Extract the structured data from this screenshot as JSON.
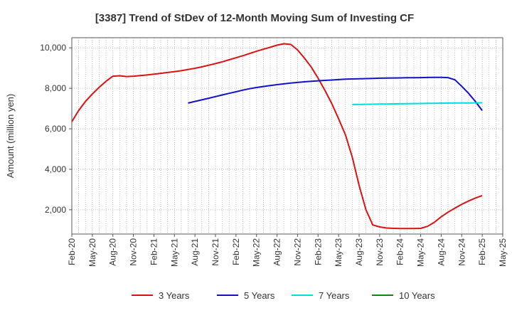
{
  "chart_data": {
    "type": "line",
    "title": "[3387]  Trend of StDev of 12-Month Moving Sum of Investing CF",
    "xlabel": "",
    "ylabel": "Amount (million yen)",
    "ylim": [
      800,
      10500
    ],
    "yticks": [
      2000,
      4000,
      6000,
      8000,
      10000
    ],
    "ytick_labels": [
      "2,000",
      "4,000",
      "6,000",
      "8,000",
      "10,000"
    ],
    "x_start": "Feb-20",
    "x_end": "May-25",
    "xticks": [
      "Feb-20",
      "May-20",
      "Aug-20",
      "Nov-20",
      "Feb-21",
      "May-21",
      "Aug-21",
      "Nov-21",
      "Feb-22",
      "May-22",
      "Aug-22",
      "Nov-22",
      "Feb-23",
      "May-23",
      "Aug-23",
      "Nov-23",
      "Feb-24",
      "May-24",
      "Aug-24",
      "Nov-24",
      "Feb-25",
      "May-25"
    ],
    "grid": true,
    "legend_position": "bottom",
    "series": [
      {
        "name": "3 Years",
        "color": "#dd1111",
        "x": [
          "Feb-20",
          "Mar-20",
          "Apr-20",
          "May-20",
          "Jun-20",
          "Jul-20",
          "Aug-20",
          "Sep-20",
          "Oct-20",
          "Nov-20",
          "Dec-20",
          "Jan-21",
          "Feb-21",
          "Mar-21",
          "Apr-21",
          "May-21",
          "Jun-21",
          "Jul-21",
          "Aug-21",
          "Sep-21",
          "Oct-21",
          "Nov-21",
          "Dec-21",
          "Jan-22",
          "Feb-22",
          "Mar-22",
          "Apr-22",
          "May-22",
          "Jun-22",
          "Jul-22",
          "Aug-22",
          "Sep-22",
          "Oct-22",
          "Nov-22",
          "Dec-22",
          "Jan-23",
          "Feb-23",
          "Mar-23",
          "Apr-23",
          "May-23",
          "Jun-23",
          "Jul-23",
          "Aug-23",
          "Sep-23",
          "Oct-23",
          "Nov-23",
          "Dec-23",
          "Jan-24",
          "Feb-24",
          "Mar-24",
          "Apr-24",
          "May-24",
          "Jun-24",
          "Jul-24",
          "Aug-24",
          "Sep-24",
          "Oct-24",
          "Nov-24",
          "Dec-24",
          "Jan-25",
          "Feb-25"
        ],
        "values": [
          6350,
          6900,
          7350,
          7720,
          8050,
          8350,
          8600,
          8620,
          8580,
          8600,
          8630,
          8660,
          8700,
          8740,
          8780,
          8820,
          8870,
          8930,
          8990,
          9060,
          9140,
          9220,
          9310,
          9410,
          9510,
          9610,
          9720,
          9830,
          9930,
          10030,
          10130,
          10200,
          10170,
          9900,
          9500,
          9050,
          8500,
          7900,
          7250,
          6500,
          5700,
          4600,
          3200,
          2000,
          1250,
          1150,
          1100,
          1080,
          1070,
          1070,
          1070,
          1080,
          1180,
          1380,
          1650,
          1880,
          2080,
          2270,
          2430,
          2580,
          2700
        ]
      },
      {
        "name": "5 Years",
        "color": "#1111cc",
        "x": [
          "Jul-21",
          "Aug-21",
          "Sep-21",
          "Oct-21",
          "Nov-21",
          "Dec-21",
          "Jan-22",
          "Feb-22",
          "Mar-22",
          "Apr-22",
          "May-22",
          "Jun-22",
          "Jul-22",
          "Aug-22",
          "Sep-22",
          "Oct-22",
          "Nov-22",
          "Dec-22",
          "Jan-23",
          "Feb-23",
          "Mar-23",
          "Apr-23",
          "May-23",
          "Jun-23",
          "Jul-23",
          "Aug-23",
          "Sep-23",
          "Oct-23",
          "Nov-23",
          "Dec-23",
          "Jan-24",
          "Feb-24",
          "Mar-24",
          "Apr-24",
          "May-24",
          "Jun-24",
          "Jul-24",
          "Aug-24",
          "Sep-24",
          "Oct-24",
          "Nov-24",
          "Dec-24",
          "Jan-25",
          "Feb-25"
        ],
        "values": [
          7270,
          7350,
          7430,
          7510,
          7590,
          7670,
          7750,
          7830,
          7910,
          7980,
          8040,
          8090,
          8140,
          8180,
          8220,
          8260,
          8290,
          8320,
          8350,
          8370,
          8390,
          8410,
          8430,
          8450,
          8460,
          8470,
          8480,
          8490,
          8500,
          8505,
          8510,
          8515,
          8520,
          8525,
          8530,
          8535,
          8540,
          8540,
          8530,
          8420,
          8100,
          7750,
          7350,
          6900
        ]
      },
      {
        "name": "7 Years",
        "color": "#00dddd",
        "x": [
          "Jul-23",
          "Aug-23",
          "Sep-23",
          "Oct-23",
          "Nov-23",
          "Dec-23",
          "Jan-24",
          "Feb-24",
          "Mar-24",
          "Apr-24",
          "May-24",
          "Jun-24",
          "Jul-24",
          "Aug-24",
          "Sep-24",
          "Oct-24",
          "Nov-24",
          "Dec-24",
          "Jan-25",
          "Feb-25"
        ],
        "values": [
          7200,
          7205,
          7210,
          7215,
          7220,
          7225,
          7230,
          7235,
          7240,
          7245,
          7250,
          7255,
          7260,
          7265,
          7270,
          7272,
          7275,
          7278,
          7280,
          7285
        ]
      },
      {
        "name": "10 Years",
        "color": "#118811",
        "x": [],
        "values": []
      }
    ]
  }
}
